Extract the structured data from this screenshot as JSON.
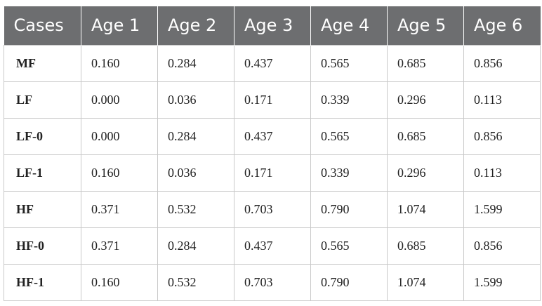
{
  "table": {
    "headers": [
      "Cases",
      "Age 1",
      "Age 2",
      "Age 3",
      "Age 4",
      "Age 5",
      "Age 6"
    ],
    "rows": [
      [
        "MF",
        "0.160",
        "0.284",
        "0.437",
        "0.565",
        "0.685",
        "0.856"
      ],
      [
        "LF",
        "0.000",
        "0.036",
        "0.171",
        "0.339",
        "0.296",
        "0.113"
      ],
      [
        "LF-0",
        "0.000",
        "0.284",
        "0.437",
        "0.565",
        "0.685",
        "0.856"
      ],
      [
        "LF-1",
        "0.160",
        "0.036",
        "0.171",
        "0.339",
        "0.296",
        "0.113"
      ],
      [
        "HF",
        "0.371",
        "0.532",
        "0.703",
        "0.790",
        "1.074",
        "1.599"
      ],
      [
        "HF-0",
        "0.371",
        "0.284",
        "0.437",
        "0.565",
        "0.685",
        "0.856"
      ],
      [
        "HF-1",
        "0.160",
        "0.532",
        "0.703",
        "0.790",
        "1.074",
        "1.599"
      ]
    ]
  },
  "colors": {
    "header_bg": "#6d6e70",
    "header_text": "#ffffff",
    "grid_line": "#c9c9c9"
  }
}
